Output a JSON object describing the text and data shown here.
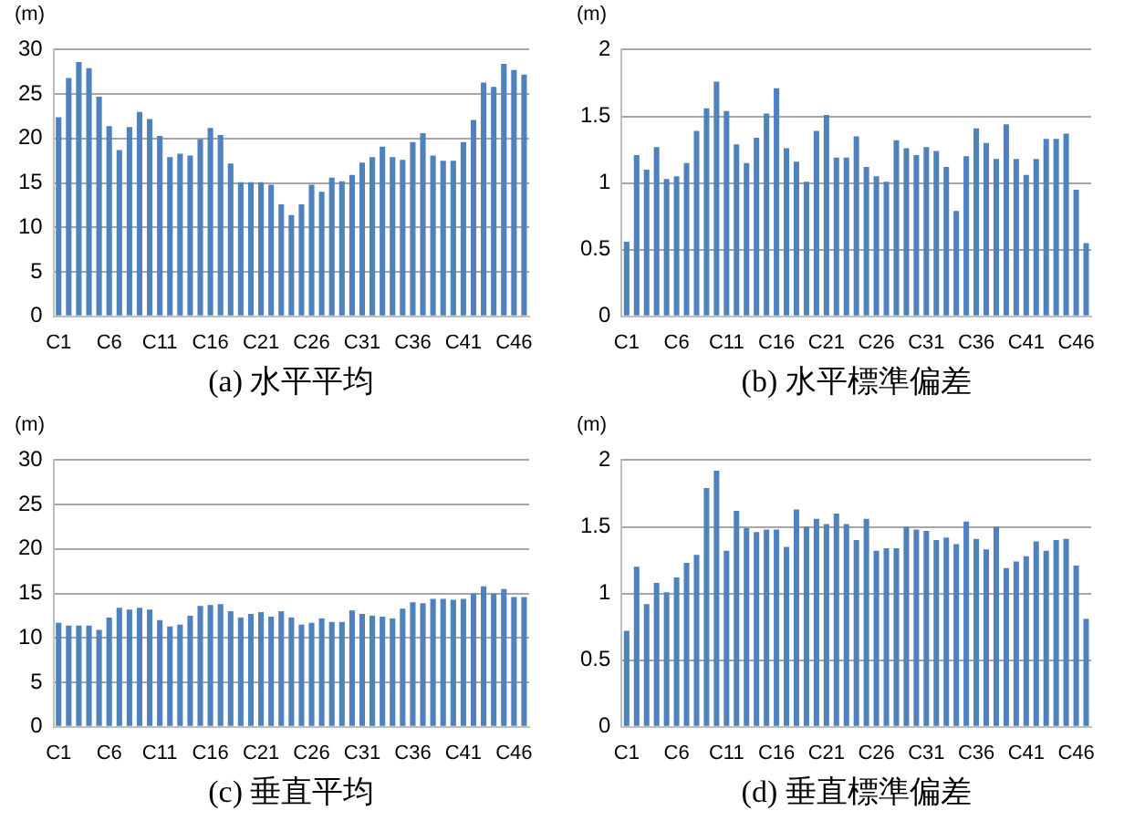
{
  "chart_data": [
    {
      "type": "bar",
      "ylabel": "(m)",
      "xlabel": "(a) 水平平均",
      "grid": "y",
      "color": "#4f81bd",
      "categories": [
        "C1",
        null,
        null,
        null,
        null,
        "C6",
        null,
        null,
        null,
        null,
        "C11",
        null,
        null,
        null,
        null,
        "C16",
        null,
        null,
        null,
        null,
        "C21",
        null,
        null,
        null,
        null,
        "C26",
        null,
        null,
        null,
        null,
        "C31",
        null,
        null,
        null,
        null,
        "C36",
        null,
        null,
        null,
        null,
        "C41",
        null,
        null,
        null,
        null,
        "C46",
        null
      ],
      "values": [
        22.4,
        26.8,
        28.6,
        27.9,
        24.7,
        21.4,
        18.7,
        21.3,
        23.0,
        22.2,
        20.3,
        17.9,
        18.3,
        18.1,
        19.9,
        21.2,
        20.4,
        17.2,
        15.1,
        15.1,
        15.1,
        14.8,
        12.6,
        11.4,
        12.6,
        14.8,
        14.0,
        15.6,
        15.2,
        15.9,
        17.3,
        17.9,
        19.1,
        17.9,
        17.6,
        19.6,
        20.6,
        18.1,
        17.5,
        17.5,
        19.6,
        22.1,
        26.3,
        25.8,
        28.4,
        27.7,
        27.2
      ],
      "ylim": [
        0,
        30
      ],
      "yticks": [
        0,
        5,
        10,
        15,
        20,
        25,
        30
      ]
    },
    {
      "type": "bar",
      "ylabel": "(m)",
      "xlabel": "(b) 水平標準偏差",
      "grid": "y",
      "color": "#4f81bd",
      "categories": [
        "C1",
        null,
        null,
        null,
        null,
        "C6",
        null,
        null,
        null,
        null,
        "C11",
        null,
        null,
        null,
        null,
        "C16",
        null,
        null,
        null,
        null,
        "C21",
        null,
        null,
        null,
        null,
        "C26",
        null,
        null,
        null,
        null,
        "C31",
        null,
        null,
        null,
        null,
        "C36",
        null,
        null,
        null,
        null,
        "C41",
        null,
        null,
        null,
        null,
        "C46",
        null
      ],
      "values": [
        0.56,
        1.21,
        1.1,
        1.27,
        1.03,
        1.05,
        1.15,
        1.39,
        1.56,
        1.76,
        1.54,
        1.29,
        1.15,
        1.34,
        1.52,
        1.71,
        1.26,
        1.16,
        1.01,
        1.39,
        1.51,
        1.19,
        1.19,
        1.35,
        1.12,
        1.05,
        1.01,
        1.32,
        1.26,
        1.21,
        1.27,
        1.24,
        1.12,
        0.79,
        1.2,
        1.41,
        1.3,
        1.18,
        1.44,
        1.18,
        1.06,
        1.18,
        1.33,
        1.33,
        1.37,
        0.95,
        0.55
      ],
      "ylim": [
        0,
        2
      ],
      "yticks": [
        0,
        0.5,
        1,
        1.5,
        2
      ]
    },
    {
      "type": "bar",
      "ylabel": "(m)",
      "xlabel": "(c) 垂直平均",
      "grid": "y",
      "color": "#4f81bd",
      "categories": [
        "C1",
        null,
        null,
        null,
        null,
        "C6",
        null,
        null,
        null,
        null,
        "C11",
        null,
        null,
        null,
        null,
        "C16",
        null,
        null,
        null,
        null,
        "C21",
        null,
        null,
        null,
        null,
        "C26",
        null,
        null,
        null,
        null,
        "C31",
        null,
        null,
        null,
        null,
        "C36",
        null,
        null,
        null,
        null,
        "C41",
        null,
        null,
        null,
        null,
        "C46",
        null
      ],
      "values": [
        11.7,
        11.4,
        11.4,
        11.4,
        10.9,
        12.3,
        13.4,
        13.2,
        13.4,
        13.2,
        12.0,
        11.3,
        11.5,
        12.5,
        13.6,
        13.7,
        13.8,
        13.0,
        12.3,
        12.7,
        12.9,
        12.4,
        13.0,
        12.3,
        11.5,
        11.7,
        12.2,
        11.8,
        11.8,
        13.1,
        12.7,
        12.5,
        12.4,
        12.2,
        13.3,
        14.0,
        13.9,
        14.4,
        14.4,
        14.3,
        14.4,
        15.0,
        15.8,
        15.0,
        15.5,
        14.6,
        14.6
      ],
      "ylim": [
        0,
        30
      ],
      "yticks": [
        0,
        5,
        10,
        15,
        20,
        25,
        30
      ]
    },
    {
      "type": "bar",
      "ylabel": "(m)",
      "xlabel": "(d) 垂直標準偏差",
      "grid": "y",
      "color": "#4f81bd",
      "categories": [
        "C1",
        null,
        null,
        null,
        null,
        "C6",
        null,
        null,
        null,
        null,
        "C11",
        null,
        null,
        null,
        null,
        "C16",
        null,
        null,
        null,
        null,
        "C21",
        null,
        null,
        null,
        null,
        "C26",
        null,
        null,
        null,
        null,
        "C31",
        null,
        null,
        null,
        null,
        "C36",
        null,
        null,
        null,
        null,
        "C41",
        null,
        null,
        null,
        null,
        "C46",
        null
      ],
      "values": [
        0.72,
        1.2,
        0.92,
        1.08,
        1.01,
        1.12,
        1.23,
        1.29,
        1.79,
        1.92,
        1.32,
        1.62,
        1.49,
        1.46,
        1.48,
        1.48,
        1.35,
        1.63,
        1.5,
        1.56,
        1.52,
        1.6,
        1.52,
        1.4,
        1.56,
        1.32,
        1.34,
        1.34,
        1.5,
        1.48,
        1.47,
        1.4,
        1.42,
        1.37,
        1.54,
        1.41,
        1.33,
        1.5,
        1.19,
        1.24,
        1.28,
        1.39,
        1.32,
        1.4,
        1.41,
        1.21,
        0.81
      ],
      "ylim": [
        0,
        2
      ],
      "yticks": [
        0,
        0.5,
        1,
        1.5,
        2
      ]
    }
  ]
}
